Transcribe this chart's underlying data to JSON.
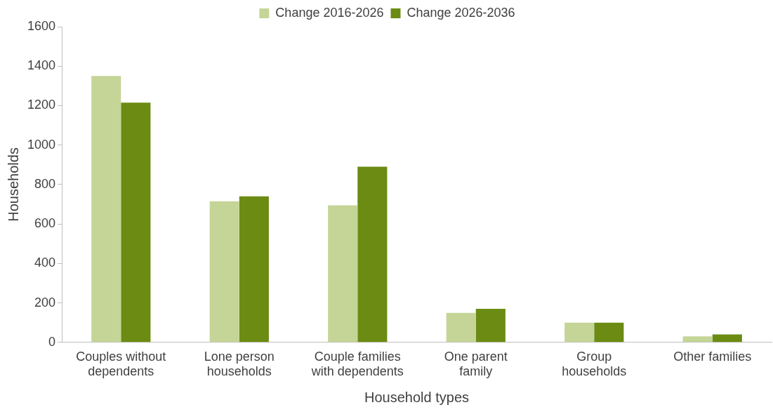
{
  "chart_data": {
    "type": "bar",
    "xlabel": "Household types",
    "ylabel": "Households",
    "categories": [
      "Couples without dependents",
      "Lone person households",
      "Couple families with dependents",
      "One parent family",
      "Group households",
      "Other families"
    ],
    "series": [
      {
        "name": "Change 2016-2026",
        "color": "#c5d597",
        "values": [
          1350,
          715,
          695,
          150,
          100,
          30
        ]
      },
      {
        "name": "Change 2026-2036",
        "color": "#6b8b13",
        "values": [
          1215,
          740,
          890,
          170,
          100,
          40
        ]
      }
    ],
    "ylim": [
      0,
      1600
    ],
    "yticks": [
      0,
      200,
      400,
      600,
      800,
      1000,
      1200,
      1400,
      1600
    ],
    "grid": false,
    "legend": "top"
  }
}
